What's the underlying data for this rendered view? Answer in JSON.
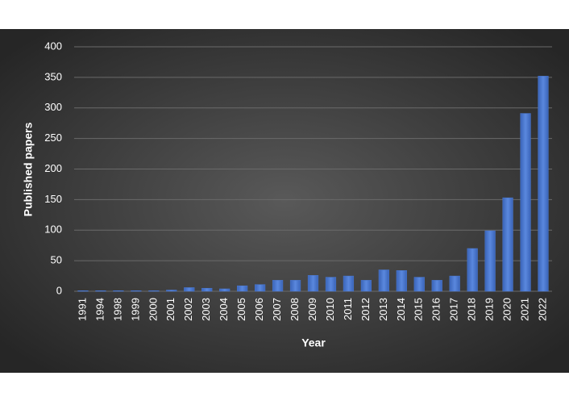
{
  "chart_data": {
    "type": "bar",
    "x_label": "Year",
    "y_label": "Published papers",
    "categories": [
      "1991",
      "1994",
      "1998",
      "1999",
      "2000",
      "2001",
      "2002",
      "2003",
      "2004",
      "2005",
      "2006",
      "2007",
      "2008",
      "2009",
      "2010",
      "2011",
      "2012",
      "2013",
      "2014",
      "2015",
      "2016",
      "2017",
      "2018",
      "2019",
      "2020",
      "2021",
      "2022"
    ],
    "values": [
      1,
      1,
      1,
      1,
      1,
      2,
      6,
      5,
      4,
      9,
      11,
      18,
      18,
      26,
      23,
      25,
      18,
      35,
      34,
      23,
      18,
      25,
      70,
      99,
      153,
      291,
      352
    ],
    "color": "#4a78d0",
    "ylim": [
      0,
      400
    ],
    "yticks": [
      0,
      50,
      100,
      150,
      200,
      250,
      300,
      350,
      400
    ],
    "grid": true
  }
}
